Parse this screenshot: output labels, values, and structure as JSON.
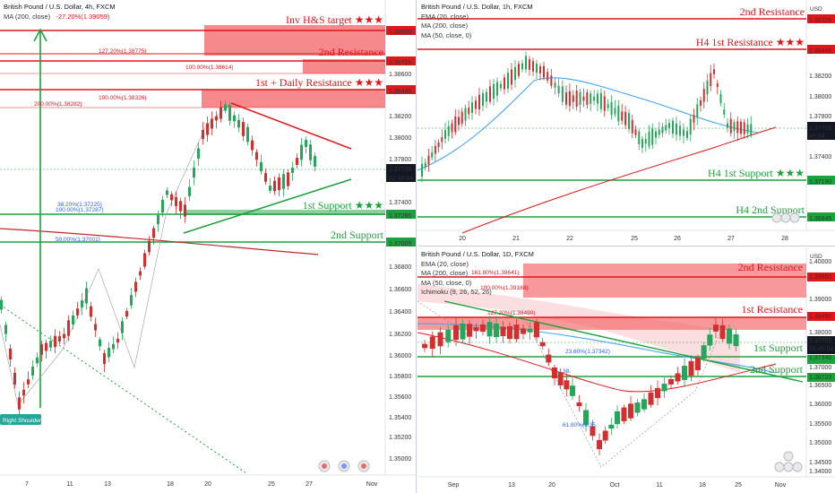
{
  "left": {
    "legend": {
      "title": "British Pound / U.S. Dollar, 4h, FXCM",
      "ma": "MA (200, close)",
      "fib_note": "-27.20%(1.39059)"
    },
    "labels": {
      "invhs": "Inv H&S target ★★★",
      "r2": "2nd Resistance",
      "r1": "1st + Daily Resistance ★★★",
      "s1": "1st Support ★★★",
      "s2": "2nd Support",
      "rs": "Right Shoulder"
    },
    "fibs": {
      "f1": "127.20%(1.38775)",
      "f2": "100.00%(1.38614)",
      "f3": "200.00%(1.38282)",
      "f4": "100.00%(1.38326)",
      "f5": "38.20%(1.37225)",
      "f6": "100.00%(1.37287)",
      "f7": "50.00%(1.37001)"
    },
    "yticks": [
      "1.39000",
      "1.38725",
      "1.38600",
      "1.38445",
      "1.38200",
      "1.38000",
      "1.37800",
      "1.37705",
      "02:45:04",
      "1.37400",
      "1.37285",
      "1.37005",
      "1.36800",
      "1.36600",
      "1.36400",
      "1.36200",
      "1.36000",
      "1.35800",
      "1.35600",
      "1.35400",
      "1.35200",
      "1.35000"
    ],
    "xticks": [
      "7",
      "11",
      "13",
      "18",
      "20",
      "25",
      "27",
      "Nov"
    ],
    "colors": {
      "resistance": "#e0161a",
      "support": "#1aa23c",
      "price": "#131722"
    }
  },
  "topright": {
    "legend": {
      "title": "British Pound / U.S. Dollar, 1h, FXCM",
      "ema": "EMA (20, close)",
      "ma200": "MA (200, close)",
      "ma50": "MA (50, close, 0)"
    },
    "labels": {
      "r2": "2nd Resistance",
      "r1": "H4 1st Resistance ★★★",
      "s1": "H4 1st Support ★★★",
      "s2": "H4 2nd Support"
    },
    "usd": "USD",
    "yticks": [
      "1.38725",
      "1.38445",
      "1.38200",
      "1.38000",
      "1.37800",
      "1.37705",
      "45:04",
      "1.37400",
      "1.37190",
      "1.36845"
    ],
    "xticks": [
      "20",
      "21",
      "22",
      "25",
      "26",
      "27",
      "28"
    ]
  },
  "bottomright": {
    "legend": {
      "title": "British Pound / U.S. Dollar, 1D, FXCM",
      "ema": "EMA (20, close)",
      "ma200": "MA (200, close)",
      "ma50": "MA (50, close, 0)",
      "ichi": "Ichimoku (9, 26, 52, 26)"
    },
    "labels": {
      "r2": "2nd Resistance",
      "r1": "1st Resistance",
      "s1": "1st Support",
      "s2": "2nd Support"
    },
    "fibs": {
      "f1": "161.80%(1.39641)",
      "f2": "100.00%(1.39188)",
      "f3": "127.20%(1.38490)",
      "f4": "23.60%(1.37342)",
      "f5": "61.80%(1.35",
      "f6": "38."
    },
    "usd": "USD",
    "yticks": [
      "1.40000",
      "1.39650",
      "1.39000",
      "1.38450",
      "1.38000",
      "1.37705",
      "18:45:04",
      "1.37340",
      "1.37000",
      "1.36720",
      "1.36500",
      "1.36000",
      "1.35500",
      "1.35000",
      "1.34500",
      "1.34000"
    ],
    "xticks": [
      "Sep",
      "13",
      "20",
      "Oct",
      "11",
      "18",
      "25",
      "Nov"
    ]
  }
}
